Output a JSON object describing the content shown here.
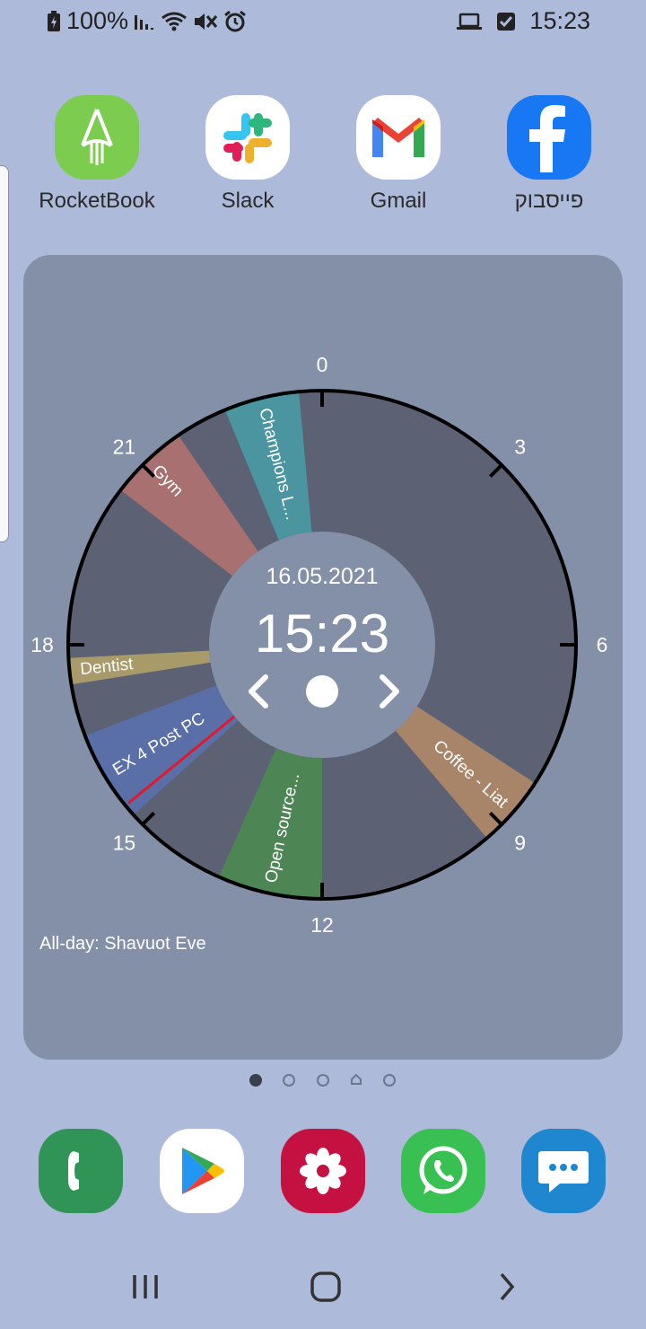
{
  "status_bar": {
    "battery": "100%",
    "time": "15:23"
  },
  "apps": [
    {
      "label": "RocketBook",
      "icon": "rocketbook-icon"
    },
    {
      "label": "Slack",
      "icon": "slack-icon"
    },
    {
      "label": "Gmail",
      "icon": "gmail-icon"
    },
    {
      "label": "פייסבוק",
      "icon": "facebook-icon"
    }
  ],
  "widget": {
    "date": "16.05.2021",
    "time": "15:23",
    "all_day": "All-day: Shavuot Eve",
    "hour_labels": [
      "0",
      "3",
      "6",
      "9",
      "12",
      "15",
      "18",
      "21"
    ],
    "events": [
      {
        "label": "Champions L...",
        "color": "#4a95a0"
      },
      {
        "label": "Gym",
        "color": "#a87070"
      },
      {
        "label": "Dentist",
        "color": "#a99a6a"
      },
      {
        "label": "EX 4 Post PC",
        "color": "#5a6fa8"
      },
      {
        "label": "Open source...",
        "color": "#4e8554"
      },
      {
        "label": "Coffee - Liat",
        "color": "#a88468"
      }
    ],
    "prev_icon": "chevron-left-icon",
    "today_icon": "dot-icon",
    "next_icon": "chevron-right-icon"
  },
  "dock": [
    {
      "name": "phone-icon",
      "color": "#2f9456"
    },
    {
      "name": "play-store-icon",
      "color": "#ffffff"
    },
    {
      "name": "gallery-icon",
      "color": "#c41142"
    },
    {
      "name": "whatsapp-icon",
      "color": "#38c152"
    },
    {
      "name": "messages-icon",
      "color": "#1f86d0"
    }
  ],
  "nav": [
    "recents-icon",
    "home-icon",
    "back-icon"
  ]
}
